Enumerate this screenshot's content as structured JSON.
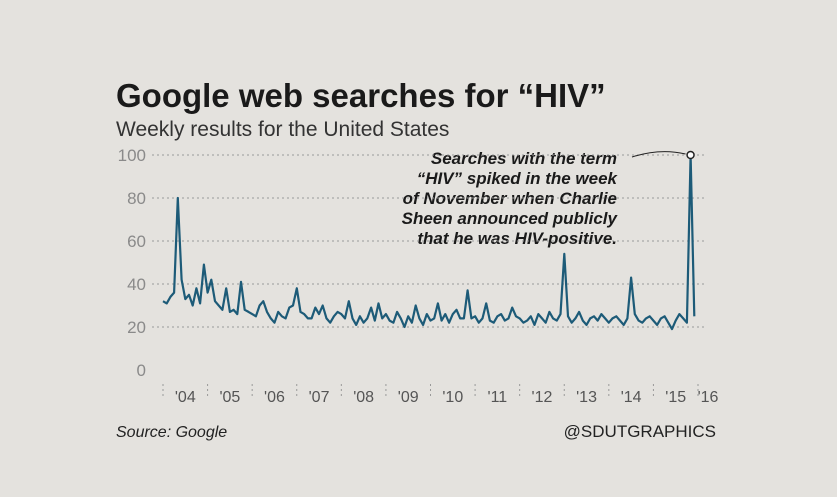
{
  "chart_data": {
    "type": "line",
    "title": "Google web searches for “HIV”",
    "subtitle": "Weekly results for the United States",
    "source": "Source: Google",
    "credit": "@SDUTGRAPHICS",
    "annotation": [
      "Searches with the term",
      "“HIV” spiked in the week",
      "of November when Charlie",
      "Sheen announced publicly",
      "that he was HIV-positive."
    ],
    "color": "#1d5b78",
    "grid": true,
    "xlim": [
      2004,
      2016
    ],
    "xticks": [
      {
        "value": 2004,
        "label": "'04"
      },
      {
        "value": 2005,
        "label": "'05"
      },
      {
        "value": 2006,
        "label": "'06"
      },
      {
        "value": 2007,
        "label": "'07"
      },
      {
        "value": 2008,
        "label": "'08"
      },
      {
        "value": 2009,
        "label": "'09"
      },
      {
        "value": 2010,
        "label": "'10"
      },
      {
        "value": 2011,
        "label": "'11"
      },
      {
        "value": 2012,
        "label": "'12"
      },
      {
        "value": 2013,
        "label": "'13"
      },
      {
        "value": 2014,
        "label": "'14"
      },
      {
        "value": 2015,
        "label": "'15"
      },
      {
        "value": 2016,
        "label": "'16"
      }
    ],
    "ylim": [
      0,
      100
    ],
    "yticks": [
      0,
      20,
      40,
      60,
      80,
      100
    ],
    "x": [
      2004,
      2004.083,
      2004.167,
      2004.25,
      2004.333,
      2004.417,
      2004.5,
      2004.583,
      2004.667,
      2004.75,
      2004.833,
      2004.917,
      2005,
      2005.083,
      2005.167,
      2005.25,
      2005.333,
      2005.417,
      2005.5,
      2005.583,
      2005.667,
      2005.75,
      2005.833,
      2005.917,
      2006,
      2006.083,
      2006.167,
      2006.25,
      2006.333,
      2006.417,
      2006.5,
      2006.583,
      2006.667,
      2006.75,
      2006.833,
      2006.917,
      2007,
      2007.083,
      2007.167,
      2007.25,
      2007.333,
      2007.417,
      2007.5,
      2007.583,
      2007.667,
      2007.75,
      2007.833,
      2007.917,
      2008,
      2008.083,
      2008.167,
      2008.25,
      2008.333,
      2008.417,
      2008.5,
      2008.583,
      2008.667,
      2008.75,
      2008.833,
      2008.917,
      2009,
      2009.083,
      2009.167,
      2009.25,
      2009.333,
      2009.417,
      2009.5,
      2009.583,
      2009.667,
      2009.75,
      2009.833,
      2009.917,
      2010,
      2010.083,
      2010.167,
      2010.25,
      2010.333,
      2010.417,
      2010.5,
      2010.583,
      2010.667,
      2010.75,
      2010.833,
      2010.917,
      2011,
      2011.083,
      2011.167,
      2011.25,
      2011.333,
      2011.417,
      2011.5,
      2011.583,
      2011.667,
      2011.75,
      2011.833,
      2011.917,
      2012,
      2012.083,
      2012.167,
      2012.25,
      2012.333,
      2012.417,
      2012.5,
      2012.583,
      2012.667,
      2012.75,
      2012.833,
      2012.917,
      2013,
      2013.083,
      2013.167,
      2013.25,
      2013.333,
      2013.417,
      2013.5,
      2013.583,
      2013.667,
      2013.75,
      2013.833,
      2013.917,
      2014,
      2014.083,
      2014.167,
      2014.25,
      2014.333,
      2014.417,
      2014.5,
      2014.583,
      2014.667,
      2014.75,
      2014.833,
      2014.917,
      2015,
      2015.083,
      2015.167,
      2015.25,
      2015.333,
      2015.417,
      2015.5,
      2015.583,
      2015.667,
      2015.75,
      2015.833,
      2015.917
    ],
    "values": [
      32,
      31,
      34,
      36,
      80,
      42,
      33,
      35,
      30,
      38,
      31,
      49,
      36,
      42,
      32,
      30,
      28,
      38,
      27,
      28,
      26,
      41,
      28,
      27,
      26,
      25,
      30,
      32,
      27,
      24,
      22,
      27,
      25,
      24,
      29,
      30,
      38,
      27,
      26,
      24,
      24,
      29,
      26,
      30,
      24,
      22,
      25,
      27,
      26,
      24,
      32,
      24,
      21,
      25,
      22,
      24,
      29,
      23,
      31,
      24,
      26,
      23,
      22,
      27,
      24,
      20,
      25,
      22,
      30,
      24,
      21,
      26,
      23,
      24,
      31,
      23,
      26,
      22,
      26,
      28,
      24,
      24,
      37,
      24,
      25,
      22,
      24,
      31,
      23,
      22,
      25,
      26,
      23,
      24,
      29,
      25,
      24,
      22,
      23,
      25,
      21,
      26,
      24,
      22,
      27,
      24,
      23,
      26,
      54,
      25,
      22,
      24,
      27,
      23,
      21,
      24,
      25,
      23,
      26,
      24,
      22,
      24,
      25,
      23,
      21,
      24,
      43,
      26,
      23,
      22,
      24,
      25,
      23,
      21,
      24,
      25,
      22,
      19,
      23,
      26,
      24,
      22,
      100,
      25
    ]
  }
}
